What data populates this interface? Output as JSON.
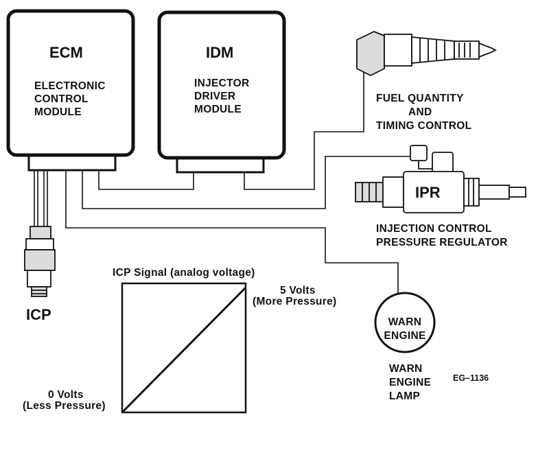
{
  "ecm": {
    "title": "ECM",
    "line1": "ELECTRONIC",
    "line2": "CONTROL",
    "line3": "MODULE"
  },
  "idm": {
    "title": "IDM",
    "line1": "INJECTOR",
    "line2": "DRIVER",
    "line3": "MODULE"
  },
  "fuel": {
    "line1": "FUEL QUANTITY",
    "line2": "AND",
    "line3": "TIMING CONTROL"
  },
  "ipr": {
    "tag": "IPR",
    "line1": "INJECTION CONTROL",
    "line2": "PRESSURE REGULATOR"
  },
  "icp": {
    "label": "ICP"
  },
  "graph": {
    "title": "ICP Signal (analog voltage)",
    "high_volts": "5 Volts",
    "high_desc": "(More Pressure)",
    "low_volts": "0 Volts",
    "low_desc": "(Less Pressure)"
  },
  "lamp": {
    "inner1": "WARN",
    "inner2": "ENGINE",
    "cap1": "WARN",
    "cap2": "ENGINE",
    "cap3": "LAMP"
  },
  "figure_code": "EG–1136",
  "colors": {
    "ink": "#111111",
    "paper": "#ffffff",
    "shade": "#dcdcdc"
  }
}
